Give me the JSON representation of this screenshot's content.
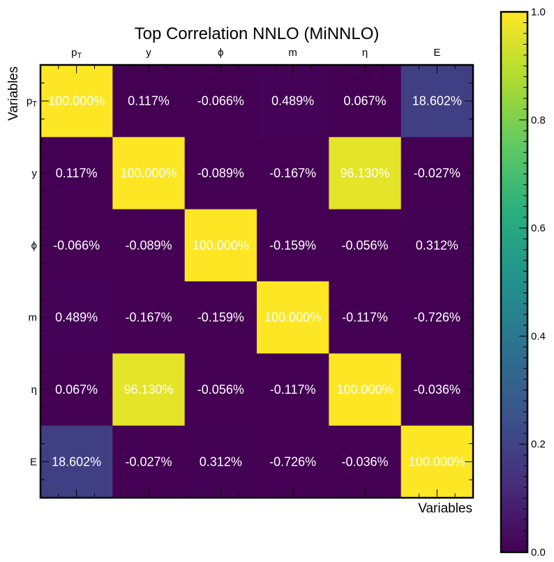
{
  "chart_data": {
    "type": "heatmap",
    "title": "Top Correlation NNLO (MiNNLO)",
    "xlabel": "Variables",
    "ylabel": "Variables",
    "x_labels": [
      "p_T",
      "y",
      "ϕ",
      "m",
      "η",
      "E"
    ],
    "y_labels": [
      "p_T",
      "y",
      "ϕ",
      "m",
      "η",
      "E"
    ],
    "values": [
      [
        1.0,
        0.00117,
        -0.00066,
        0.00489,
        0.00067,
        0.18602
      ],
      [
        0.00117,
        1.0,
        -0.00089,
        -0.00167,
        0.9613,
        -0.00027
      ],
      [
        -0.00066,
        -0.00089,
        1.0,
        -0.00159,
        -0.00056,
        0.00312
      ],
      [
        0.00489,
        -0.00167,
        -0.00159,
        1.0,
        -0.00117,
        -0.00726
      ],
      [
        0.00067,
        0.9613,
        -0.00056,
        -0.00117,
        1.0,
        -0.00036
      ],
      [
        0.18602,
        -0.00027,
        0.00312,
        -0.00726,
        -0.00036,
        1.0
      ]
    ],
    "cell_labels": [
      [
        "100.000%",
        "0.117%",
        "-0.066%",
        "0.489%",
        "0.067%",
        "18.602%"
      ],
      [
        "0.117%",
        "100.000%",
        "-0.089%",
        "-0.167%",
        "96.130%",
        "-0.027%"
      ],
      [
        "-0.066%",
        "-0.089%",
        "100.000%",
        "-0.159%",
        "-0.056%",
        "0.312%"
      ],
      [
        "0.489%",
        "-0.167%",
        "-0.159%",
        "100.000%",
        "-0.117%",
        "-0.726%"
      ],
      [
        "0.067%",
        "96.130%",
        "-0.056%",
        "-0.117%",
        "100.000%",
        "-0.036%"
      ],
      [
        "18.602%",
        "-0.027%",
        "0.312%",
        "-0.726%",
        "-0.036%",
        "100.000%"
      ]
    ],
    "colorbar": {
      "colormap": "viridis",
      "range": [
        0.0,
        1.0
      ],
      "ticks": [
        "0.0",
        "0.2",
        "0.4",
        "0.6",
        "0.8",
        "1.0"
      ]
    },
    "x_tick_position": "top",
    "grid": false
  }
}
